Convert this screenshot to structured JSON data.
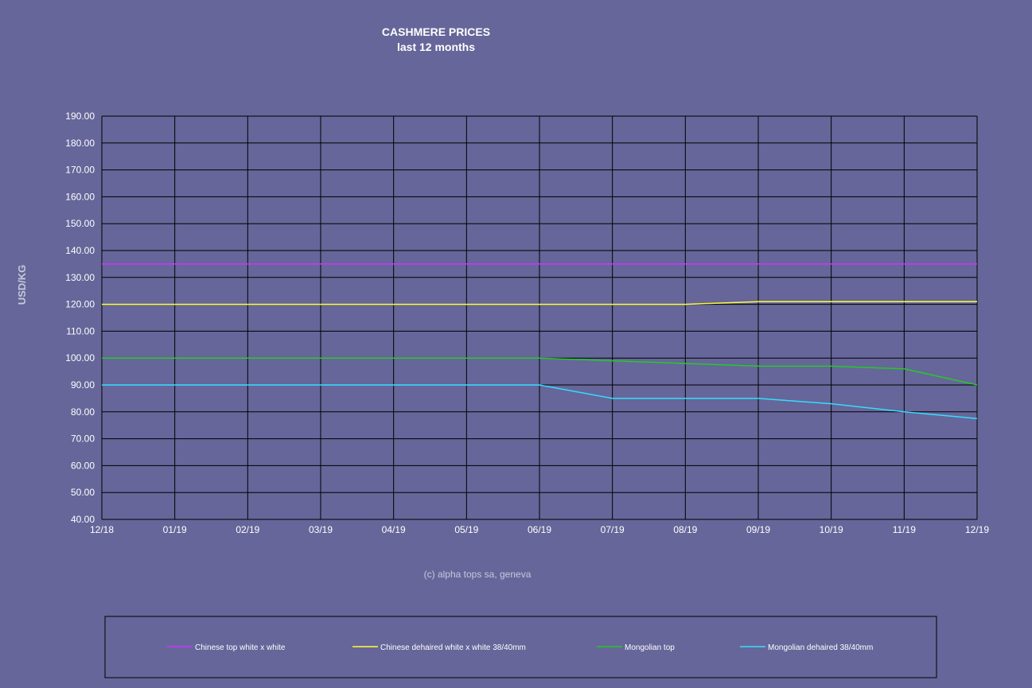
{
  "chart_data": {
    "type": "line",
    "title": "CASHMERE PRICES",
    "subtitle": "last 12 months",
    "ylabel": "USD/KG",
    "xlabel": "",
    "credit": "(c) alpha tops sa, geneva",
    "x": [
      "12/18",
      "01/19",
      "02/19",
      "03/19",
      "04/19",
      "05/19",
      "06/19",
      "07/19",
      "08/19",
      "09/19",
      "10/19",
      "11/19",
      "12/19"
    ],
    "ylim": [
      40,
      190
    ],
    "yticks": [
      "40.00",
      "50.00",
      "60.00",
      "70.00",
      "80.00",
      "90.00",
      "100.00",
      "110.00",
      "120.00",
      "130.00",
      "140.00",
      "150.00",
      "160.00",
      "170.00",
      "180.00",
      "190.00"
    ],
    "grid": true,
    "legend_position": "bottom",
    "series": [
      {
        "name": "Chinese top white x white",
        "color": "#cc33ff",
        "values": [
          135,
          135,
          135,
          135,
          135,
          135,
          135,
          135,
          135,
          135,
          135,
          135,
          135
        ]
      },
      {
        "name": "Chinese dehaired white x white 38/40mm",
        "color": "#ffff33",
        "values": [
          120,
          120,
          120,
          120,
          120,
          120,
          120,
          120,
          120,
          121,
          121,
          121,
          121
        ]
      },
      {
        "name": "Mongolian top",
        "color": "#22cc22",
        "values": [
          100,
          100,
          100,
          100,
          100,
          100,
          100,
          99,
          98,
          97,
          97,
          96,
          90
        ]
      },
      {
        "name": "Mongolian dehaired 38/40mm",
        "color": "#33ddff",
        "values": [
          90,
          90,
          90,
          90,
          90,
          90,
          90,
          85,
          85,
          85,
          83,
          80,
          77.5
        ]
      }
    ]
  }
}
